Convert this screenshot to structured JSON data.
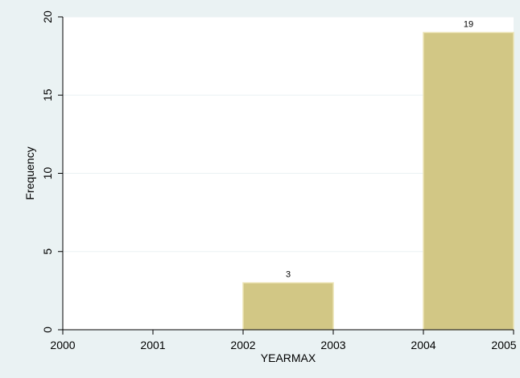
{
  "chart_data": {
    "type": "bar",
    "xlabel": "YEARMAX",
    "ylabel": "Frequency",
    "ylim": [
      0,
      20
    ],
    "xlim": [
      2000,
      2005
    ],
    "x_ticks": [
      "2000",
      "2001",
      "2002",
      "2003",
      "2004",
      "2005"
    ],
    "y_ticks": [
      "0",
      "5",
      "10",
      "15",
      "20"
    ],
    "bars": [
      {
        "x_start": 2002,
        "x_end": 2003,
        "value": 3,
        "label": "3"
      },
      {
        "x_start": 2004,
        "x_end": 2005,
        "value": 19,
        "label": "19"
      }
    ],
    "grid": true,
    "colors": {
      "background": "#eaf2f3",
      "plot_background": "#ffffff",
      "bar_fill": "#d2c785",
      "bar_stroke": "#ebe3b4",
      "grid": "#eaf2f3",
      "axis": "#000000"
    }
  }
}
